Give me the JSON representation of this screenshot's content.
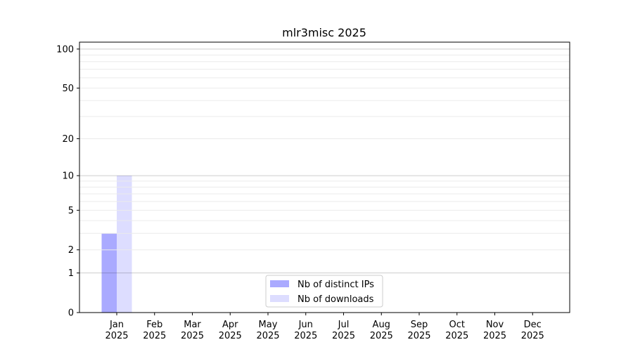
{
  "chart_data": {
    "type": "bar",
    "title": "mlr3misc 2025",
    "xlabel": "",
    "ylabel": "",
    "categories": [
      "Jan\n2025",
      "Feb\n2025",
      "Mar\n2025",
      "Apr\n2025",
      "May\n2025",
      "Jun\n2025",
      "Jul\n2025",
      "Aug\n2025",
      "Sep\n2025",
      "Oct\n2025",
      "Nov\n2025",
      "Dec\n2025"
    ],
    "series": [
      {
        "name": "Nb of distinct IPs",
        "color": "#aaaaff",
        "values": [
          3,
          0,
          0,
          0,
          0,
          0,
          0,
          0,
          0,
          0,
          0,
          0
        ]
      },
      {
        "name": "Nb of downloads",
        "color": "#ddddff",
        "values": [
          10,
          0,
          0,
          0,
          0,
          0,
          0,
          0,
          0,
          0,
          0,
          0
        ]
      }
    ],
    "y_scale": "log10(1+y)",
    "ylim": [
      0,
      113
    ],
    "y_ticks": [
      0,
      1,
      2,
      5,
      10,
      20,
      50,
      100
    ],
    "grid": true,
    "legend_position": "lower-center"
  }
}
